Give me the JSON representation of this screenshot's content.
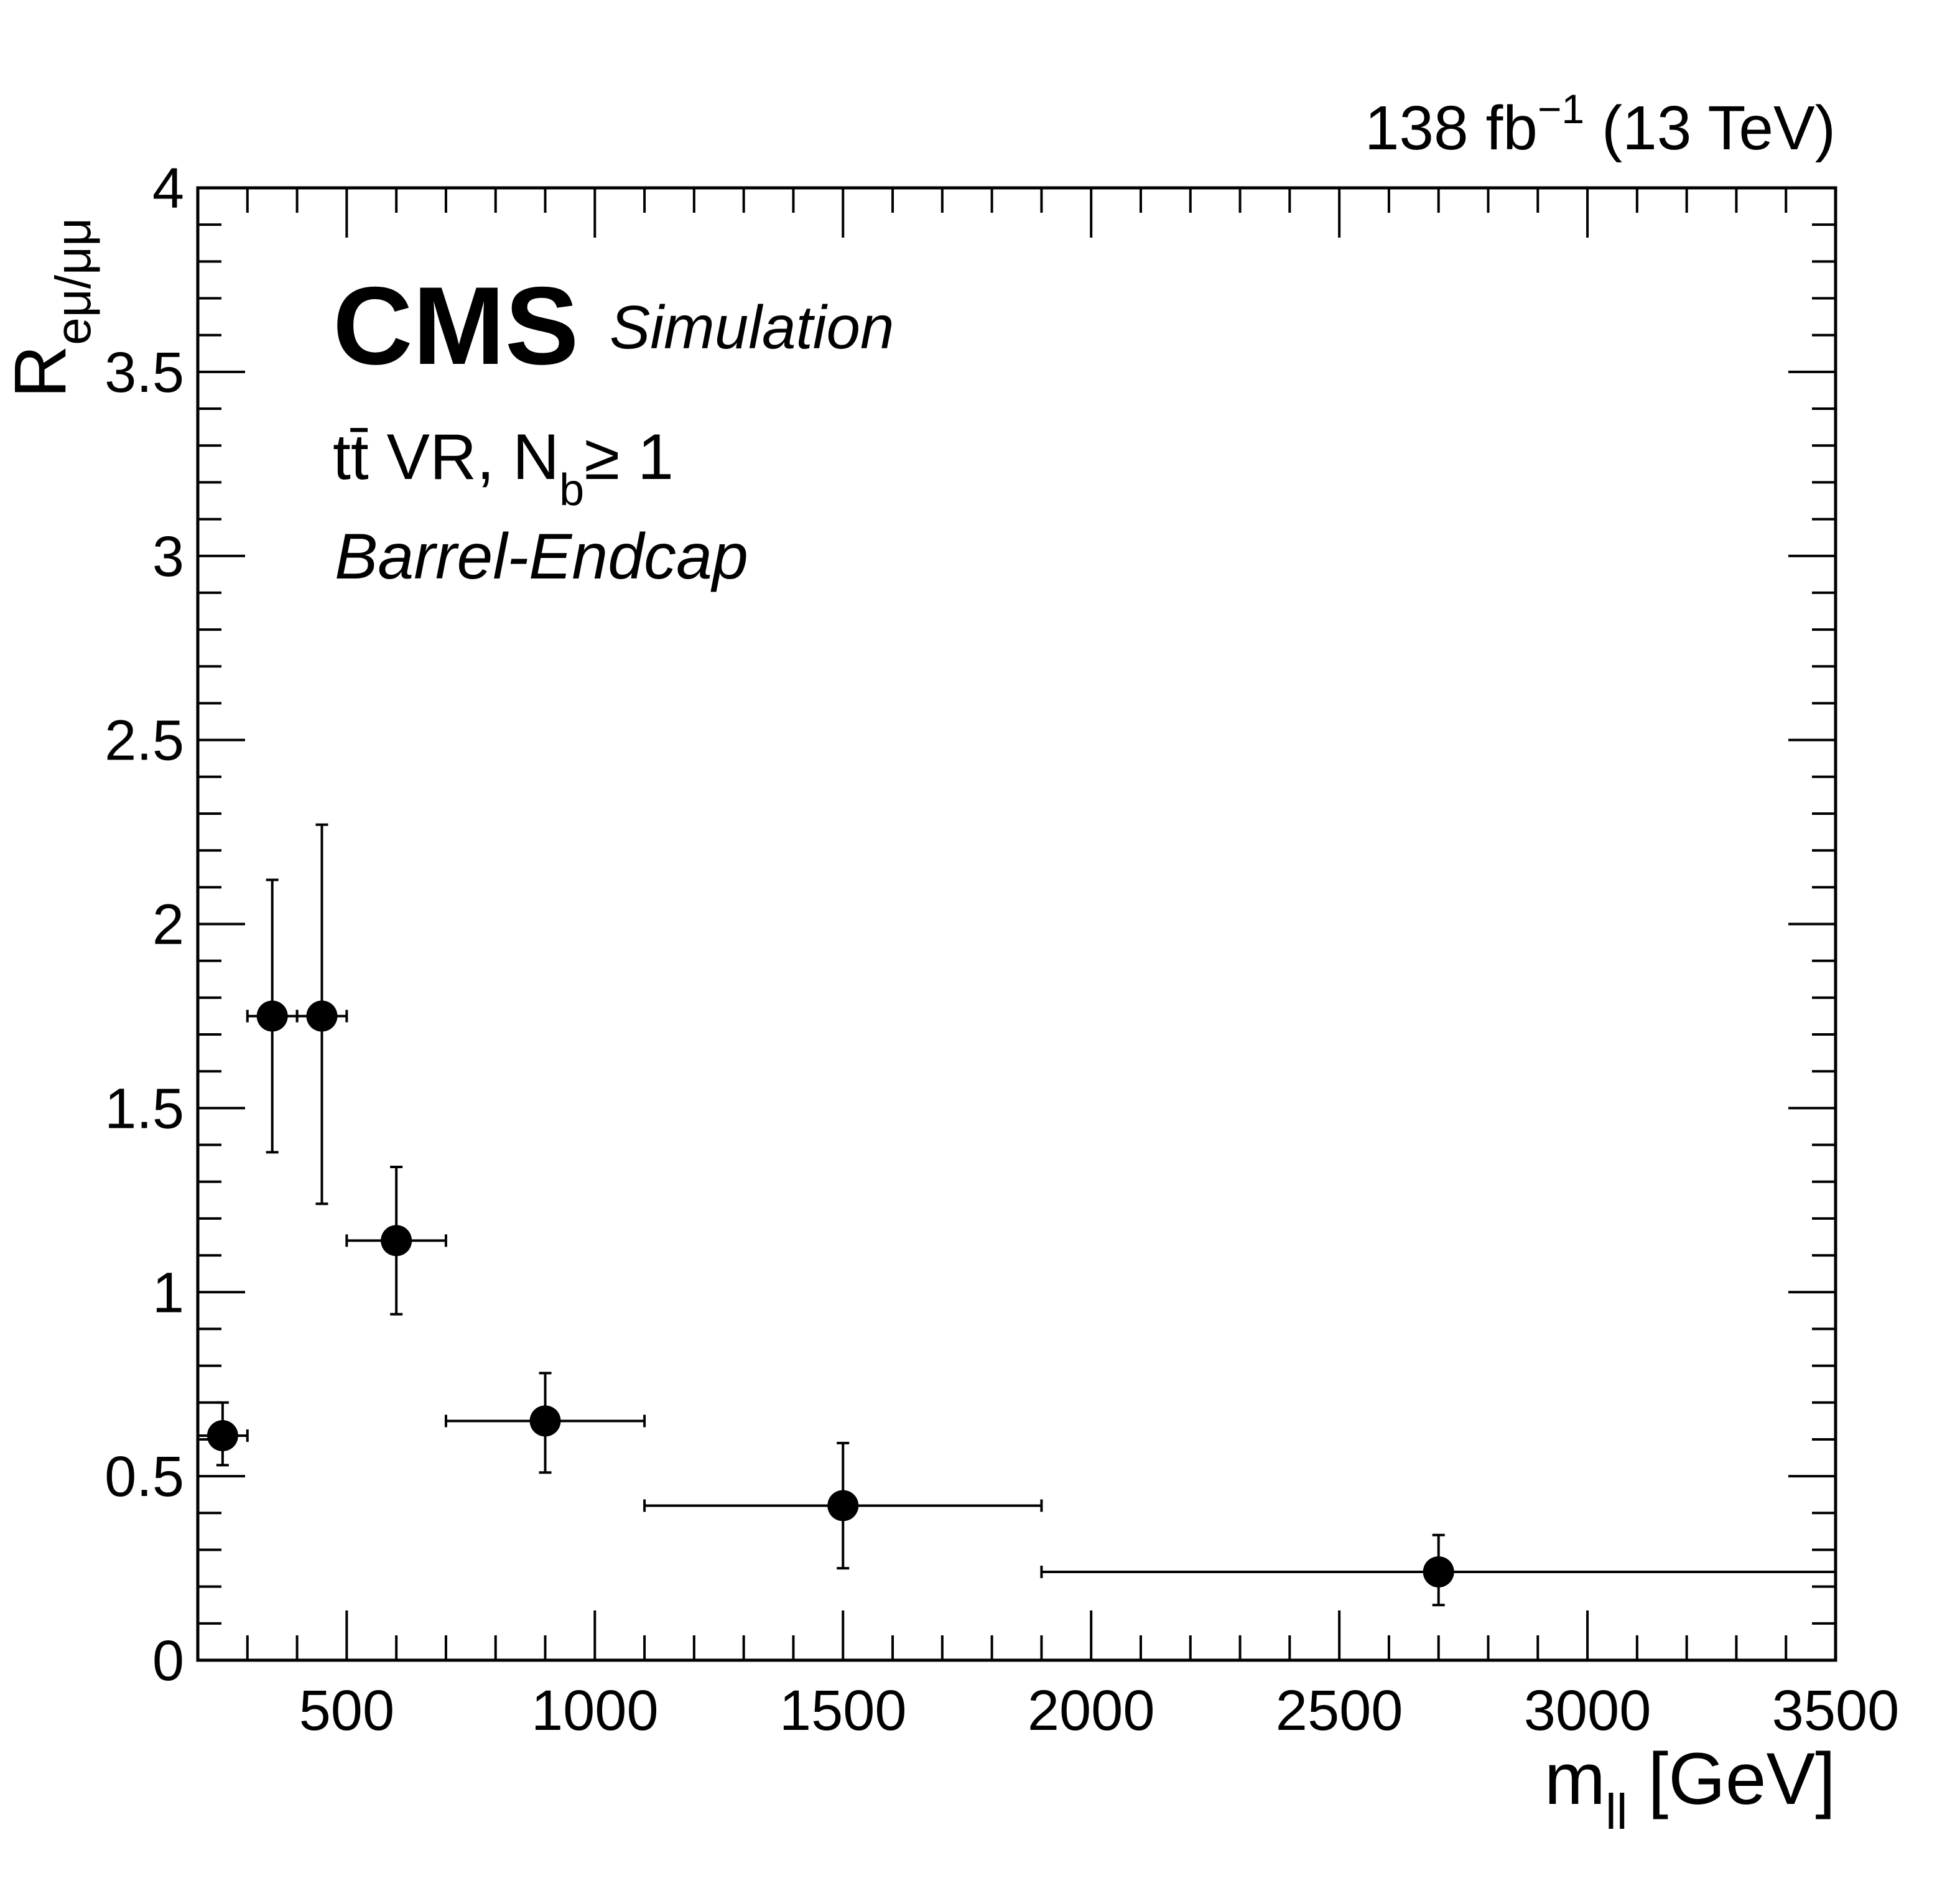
{
  "chart_data": {
    "type": "scatter",
    "title": "",
    "xlabel": {
      "main": "m",
      "sub": "ll",
      "suffix": " [GeV]"
    },
    "ylabel": {
      "main": "R",
      "sub": "eμ/μμ"
    },
    "xlim": [
      200,
      3500
    ],
    "ylim": [
      0,
      4
    ],
    "x_ticks": [
      500,
      1000,
      1500,
      2000,
      2500,
      3000,
      3500
    ],
    "y_ticks": [
      0,
      0.5,
      1,
      1.5,
      2,
      2.5,
      3,
      3.5,
      4
    ],
    "grid": false,
    "series": [
      {
        "name": "Barrel-Endcap",
        "color": "#000000",
        "points": [
          {
            "x": 250,
            "xlow": 200,
            "xhigh": 300,
            "y": 0.61,
            "ylow": 0.53,
            "yhigh": 0.7
          },
          {
            "x": 350,
            "xlow": 300,
            "xhigh": 400,
            "y": 1.75,
            "ylow": 1.38,
            "yhigh": 2.12
          },
          {
            "x": 450,
            "xlow": 400,
            "xhigh": 500,
            "y": 1.75,
            "ylow": 1.24,
            "yhigh": 2.27
          },
          {
            "x": 600,
            "xlow": 500,
            "xhigh": 700,
            "y": 1.14,
            "ylow": 0.94,
            "yhigh": 1.34
          },
          {
            "x": 900,
            "xlow": 700,
            "xhigh": 1100,
            "y": 0.65,
            "ylow": 0.51,
            "yhigh": 0.78
          },
          {
            "x": 1500,
            "xlow": 1100,
            "xhigh": 1900,
            "y": 0.42,
            "ylow": 0.25,
            "yhigh": 0.59
          },
          {
            "x": 2700,
            "xlow": 1900,
            "xhigh": 3500,
            "y": 0.24,
            "ylow": 0.15,
            "yhigh": 0.34
          }
        ]
      }
    ]
  },
  "annotations": {
    "experiment": "CMS",
    "status": "Simulation",
    "region": {
      "main": "tt̄ VR, N",
      "sub": "b",
      "suffix": "≥ 1"
    },
    "category": "Barrel-Endcap",
    "lumi": {
      "main": "138 fb",
      "sup": "−1",
      "suffix": " (13 TeV)"
    }
  }
}
